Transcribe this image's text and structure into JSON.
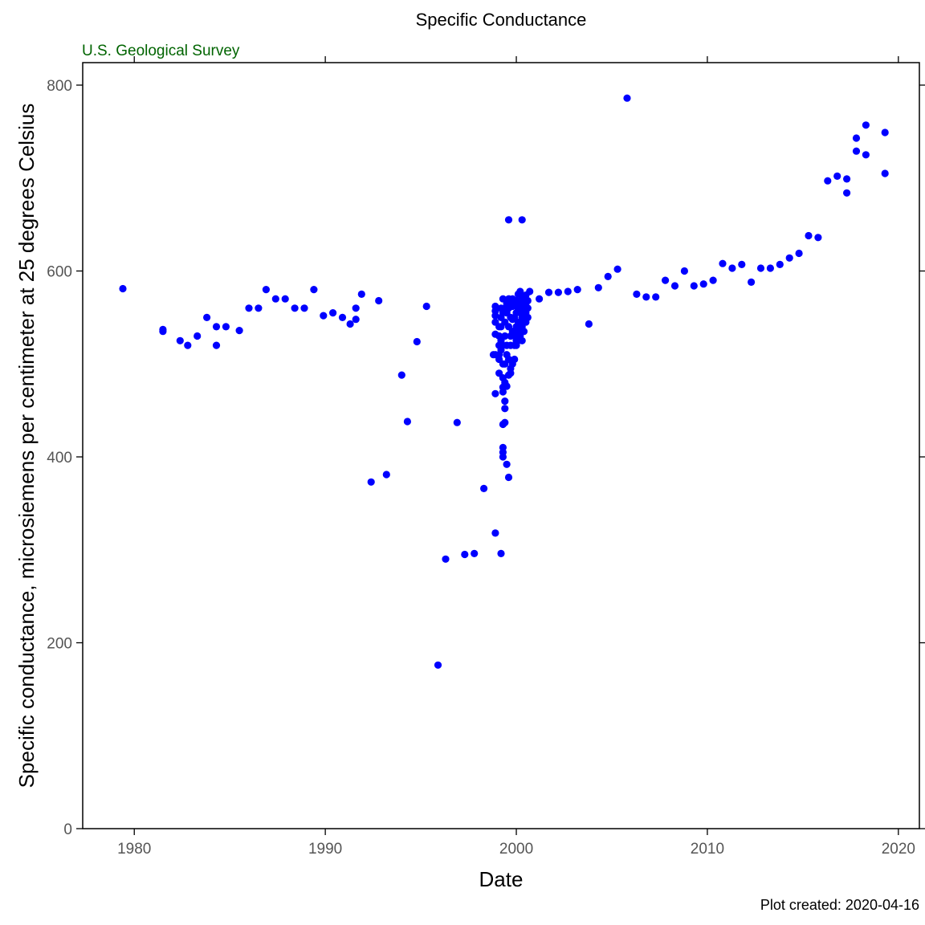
{
  "header": {
    "title": "Specific Conductance",
    "agency": "U.S. Geological Survey",
    "agency_color": "#006400"
  },
  "footer": {
    "created": "Plot created: 2020-04-16"
  },
  "chart_data": {
    "type": "scatter",
    "title": "Specific Conductance",
    "xlabel": "Date",
    "ylabel": "Specific conductance, microsiemens per centimeter at 25 degrees Celsius",
    "xlim": [
      1977.3,
      2021.1
    ],
    "ylim": [
      0,
      800
    ],
    "xticks": [
      1980,
      1990,
      2000,
      2010,
      2020
    ],
    "yticks": [
      0,
      200,
      400,
      600,
      800
    ],
    "grid": false,
    "legend": "none",
    "marker_color": "#0000ff",
    "series": [
      {
        "x": [
          1979.4,
          1981.5,
          1981.5,
          1982.4,
          1982.8,
          1983.3,
          1983.8,
          1984.3,
          1984.3,
          1984.8,
          1985.5,
          1986.0,
          1986.5,
          1986.9,
          1987.4,
          1987.9,
          1988.4,
          1988.9,
          1989.4,
          1989.9,
          1990.4,
          1990.9,
          1991.3,
          1991.6,
          1991.6,
          1991.9,
          1992.4,
          1992.8,
          1993.2,
          1994.0,
          1994.3,
          1994.8,
          1995.3,
          1995.9,
          1996.3,
          1996.9,
          1997.3,
          1997.8,
          1998.3,
          1998.8,
          1998.9,
          1999.2
        ],
        "y": [
          581,
          537,
          535,
          525,
          520,
          530,
          550,
          540,
          520,
          540,
          536,
          560,
          560,
          580,
          570,
          570,
          560,
          560,
          580,
          552,
          555,
          550,
          543,
          548,
          560,
          575,
          373,
          568,
          381,
          488,
          438,
          524,
          562,
          176,
          290,
          437,
          295,
          296,
          366,
          510,
          318,
          296
        ]
      },
      {
        "x": [
          1998.9,
          1998.9,
          1998.9,
          1998.9,
          1998.9,
          1998.9,
          1998.9,
          1999.1,
          1999.1,
          1999.1,
          1999.1,
          1999.1,
          1999.1,
          1999.2,
          1999.2,
          1999.2,
          1999.2,
          1999.2,
          1999.3,
          1999.3,
          1999.3,
          1999.3,
          1999.3,
          1999.3,
          1999.3,
          1999.3,
          1999.3,
          1999.3,
          1999.3,
          1999.4,
          1999.4,
          1999.4,
          1999.4,
          1999.4,
          1999.4,
          1999.4,
          1999.4,
          1999.5,
          1999.5,
          1999.5,
          1999.5,
          1999.5,
          1999.5,
          1999.6,
          1999.6,
          1999.6,
          1999.6,
          1999.6,
          1999.6,
          1999.7,
          1999.7,
          1999.7,
          1999.7,
          1999.7,
          1999.7,
          1999.8,
          1999.8,
          1999.8,
          1999.8,
          1999.8,
          1999.9,
          1999.9,
          1999.9,
          1999.9,
          1999.9,
          2000.0,
          2000.0,
          2000.0,
          2000.0,
          2000.0,
          2000.1,
          2000.1,
          2000.1,
          2000.1,
          2000.1,
          2000.2,
          2000.2,
          2000.2,
          2000.2,
          2000.2,
          2000.3,
          2000.3,
          2000.3,
          2000.3,
          2000.3,
          2000.4,
          2000.4,
          2000.4,
          2000.4,
          2000.5,
          2000.5,
          2000.5,
          2000.5,
          2000.6,
          2000.6,
          2000.6
        ],
        "y": [
          562,
          557,
          552,
          545,
          532,
          510,
          468,
          540,
          530,
          520,
          510,
          505,
          490,
          560,
          550,
          540,
          525,
          515,
          570,
          555,
          520,
          500,
          485,
          475,
          470,
          435,
          410,
          405,
          400,
          560,
          545,
          530,
          500,
          480,
          460,
          452,
          437,
          565,
          555,
          520,
          510,
          476,
          392,
          570,
          560,
          540,
          505,
          488,
          378,
          568,
          550,
          530,
          520,
          495,
          490,
          570,
          562,
          548,
          535,
          500,
          565,
          550,
          530,
          520,
          505,
          568,
          555,
          540,
          525,
          520,
          575,
          560,
          545,
          535,
          525,
          578,
          565,
          555,
          545,
          530,
          572,
          562,
          550,
          540,
          525,
          570,
          560,
          548,
          535,
          574,
          565,
          555,
          545,
          568,
          560,
          550
        ]
      },
      {
        "x": [
          1999.6,
          2000.3,
          2000.7,
          2001.2,
          2001.7,
          2002.2,
          2002.7,
          2003.2,
          2003.8,
          2004.3,
          2004.8,
          2005.3,
          2005.8,
          2006.3,
          2006.8,
          2007.3,
          2007.8,
          2008.3,
          2008.8,
          2009.3,
          2009.8,
          2010.3,
          2010.8,
          2011.3,
          2011.8,
          2012.3,
          2012.8,
          2013.3,
          2013.8,
          2014.3,
          2014.8,
          2015.3,
          2015.8,
          2016.3,
          2016.8,
          2017.3,
          2017.3,
          2017.8,
          2017.8,
          2018.3,
          2018.3,
          2019.3,
          2019.3
        ],
        "y": [
          655,
          655,
          578,
          570,
          577,
          577,
          578,
          580,
          543,
          582,
          594,
          602,
          786,
          575,
          572,
          572,
          590,
          584,
          600,
          584,
          586,
          590,
          608,
          603,
          607,
          588,
          603,
          603,
          607,
          614,
          619,
          638,
          636,
          697,
          702,
          684,
          699,
          743,
          729,
          757,
          725,
          749,
          705
        ]
      }
    ]
  }
}
